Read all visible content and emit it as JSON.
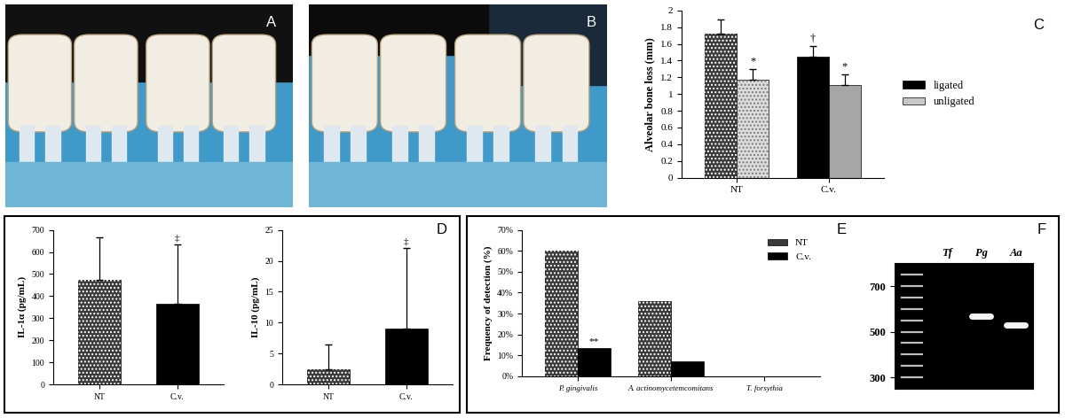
{
  "chart_data": [
    {
      "type": "image",
      "annotations": [
        "A"
      ]
    },
    {
      "type": "image",
      "annotations": [
        "B"
      ]
    },
    {
      "type": "bar",
      "annotations": [
        "C"
      ],
      "categories": [
        "NT",
        "C.v."
      ],
      "y_label": "Alveolar bone loss (mm)",
      "series": [
        {
          "name": "ligated",
          "color": "#000000",
          "colors": [
            "#3a3a3a",
            "#000000"
          ],
          "values": [
            1.72,
            1.45
          ],
          "errors": [
            0.17,
            0.12
          ],
          "significance": [
            null,
            "†"
          ]
        },
        {
          "name": "unligated",
          "color": "#c8c8c8",
          "colors": [
            "#dcdcdc",
            "#a6a6a6"
          ],
          "values": [
            1.17,
            1.11
          ],
          "errors": [
            0.13,
            0.12
          ],
          "significance": [
            "*",
            "*"
          ]
        }
      ],
      "ylim": [
        0,
        2
      ],
      "yticks": [
        0,
        0.2,
        0.4,
        0.6,
        0.8,
        1,
        1.2,
        1.4,
        1.6,
        1.8,
        2
      ],
      "legend": "right"
    },
    {
      "type": "bar",
      "annotations": [
        "D"
      ],
      "categories": [
        "NT",
        "C.v."
      ],
      "y_label": "IL-1α (pg/mL)",
      "values": [
        472,
        367
      ],
      "colors": [
        "#3a3a3a",
        "#000000"
      ],
      "errors": [
        193,
        268
      ],
      "significance": [
        null,
        "‡"
      ],
      "ylim": [
        0,
        700
      ],
      "yticks": [
        0,
        100,
        200,
        300,
        400,
        500,
        600,
        700
      ]
    },
    {
      "type": "bar",
      "categories": [
        "NT",
        "C.v."
      ],
      "y_label": "IL-10 (pg/mL)",
      "values": [
        2.4,
        9.1
      ],
      "colors": [
        "#3a3a3a",
        "#000000"
      ],
      "errors": [
        4.1,
        13.0
      ],
      "significance": [
        null,
        "‡"
      ],
      "ylim": [
        0,
        25
      ],
      "yticks": [
        0,
        5,
        10,
        15,
        20,
        25
      ]
    },
    {
      "type": "bar",
      "annotations": [
        "E"
      ],
      "categories": [
        "P. gingivalis",
        "A. actinomycetemcomitans",
        "T. forsythia"
      ],
      "y_label": "Frequency of detection (%)",
      "series": [
        {
          "name": "NT",
          "color": "#3a3a3a",
          "values": [
            60,
            36,
            0
          ]
        },
        {
          "name": "C.v.",
          "color": "#000000",
          "values": [
            13.5,
            7,
            0
          ],
          "significance": [
            "**",
            null,
            null
          ]
        }
      ],
      "ylim": [
        0,
        70
      ],
      "yticks": [
        {
          "value": 0,
          "label": "0%"
        },
        {
          "value": 10,
          "label": "10%"
        },
        {
          "value": 20,
          "label": "20%"
        },
        {
          "value": 30,
          "label": "30%"
        },
        {
          "value": 40,
          "label": "40%"
        },
        {
          "value": 50,
          "label": "50%"
        },
        {
          "value": 60,
          "label": "60%"
        },
        {
          "value": 70,
          "label": "70%"
        }
      ],
      "legend": "upper right"
    },
    {
      "type": "gel",
      "annotations": [
        "F"
      ],
      "categories": [
        null,
        "Tf",
        "Pg",
        "Aa"
      ],
      "values": [
        null,
        null,
        570,
        530
      ],
      "ladder": [
        300,
        350,
        400,
        450,
        500,
        550,
        600,
        650,
        700,
        750
      ],
      "ylim": [
        250,
        800
      ],
      "yticks": [
        300,
        500,
        700
      ]
    }
  ]
}
